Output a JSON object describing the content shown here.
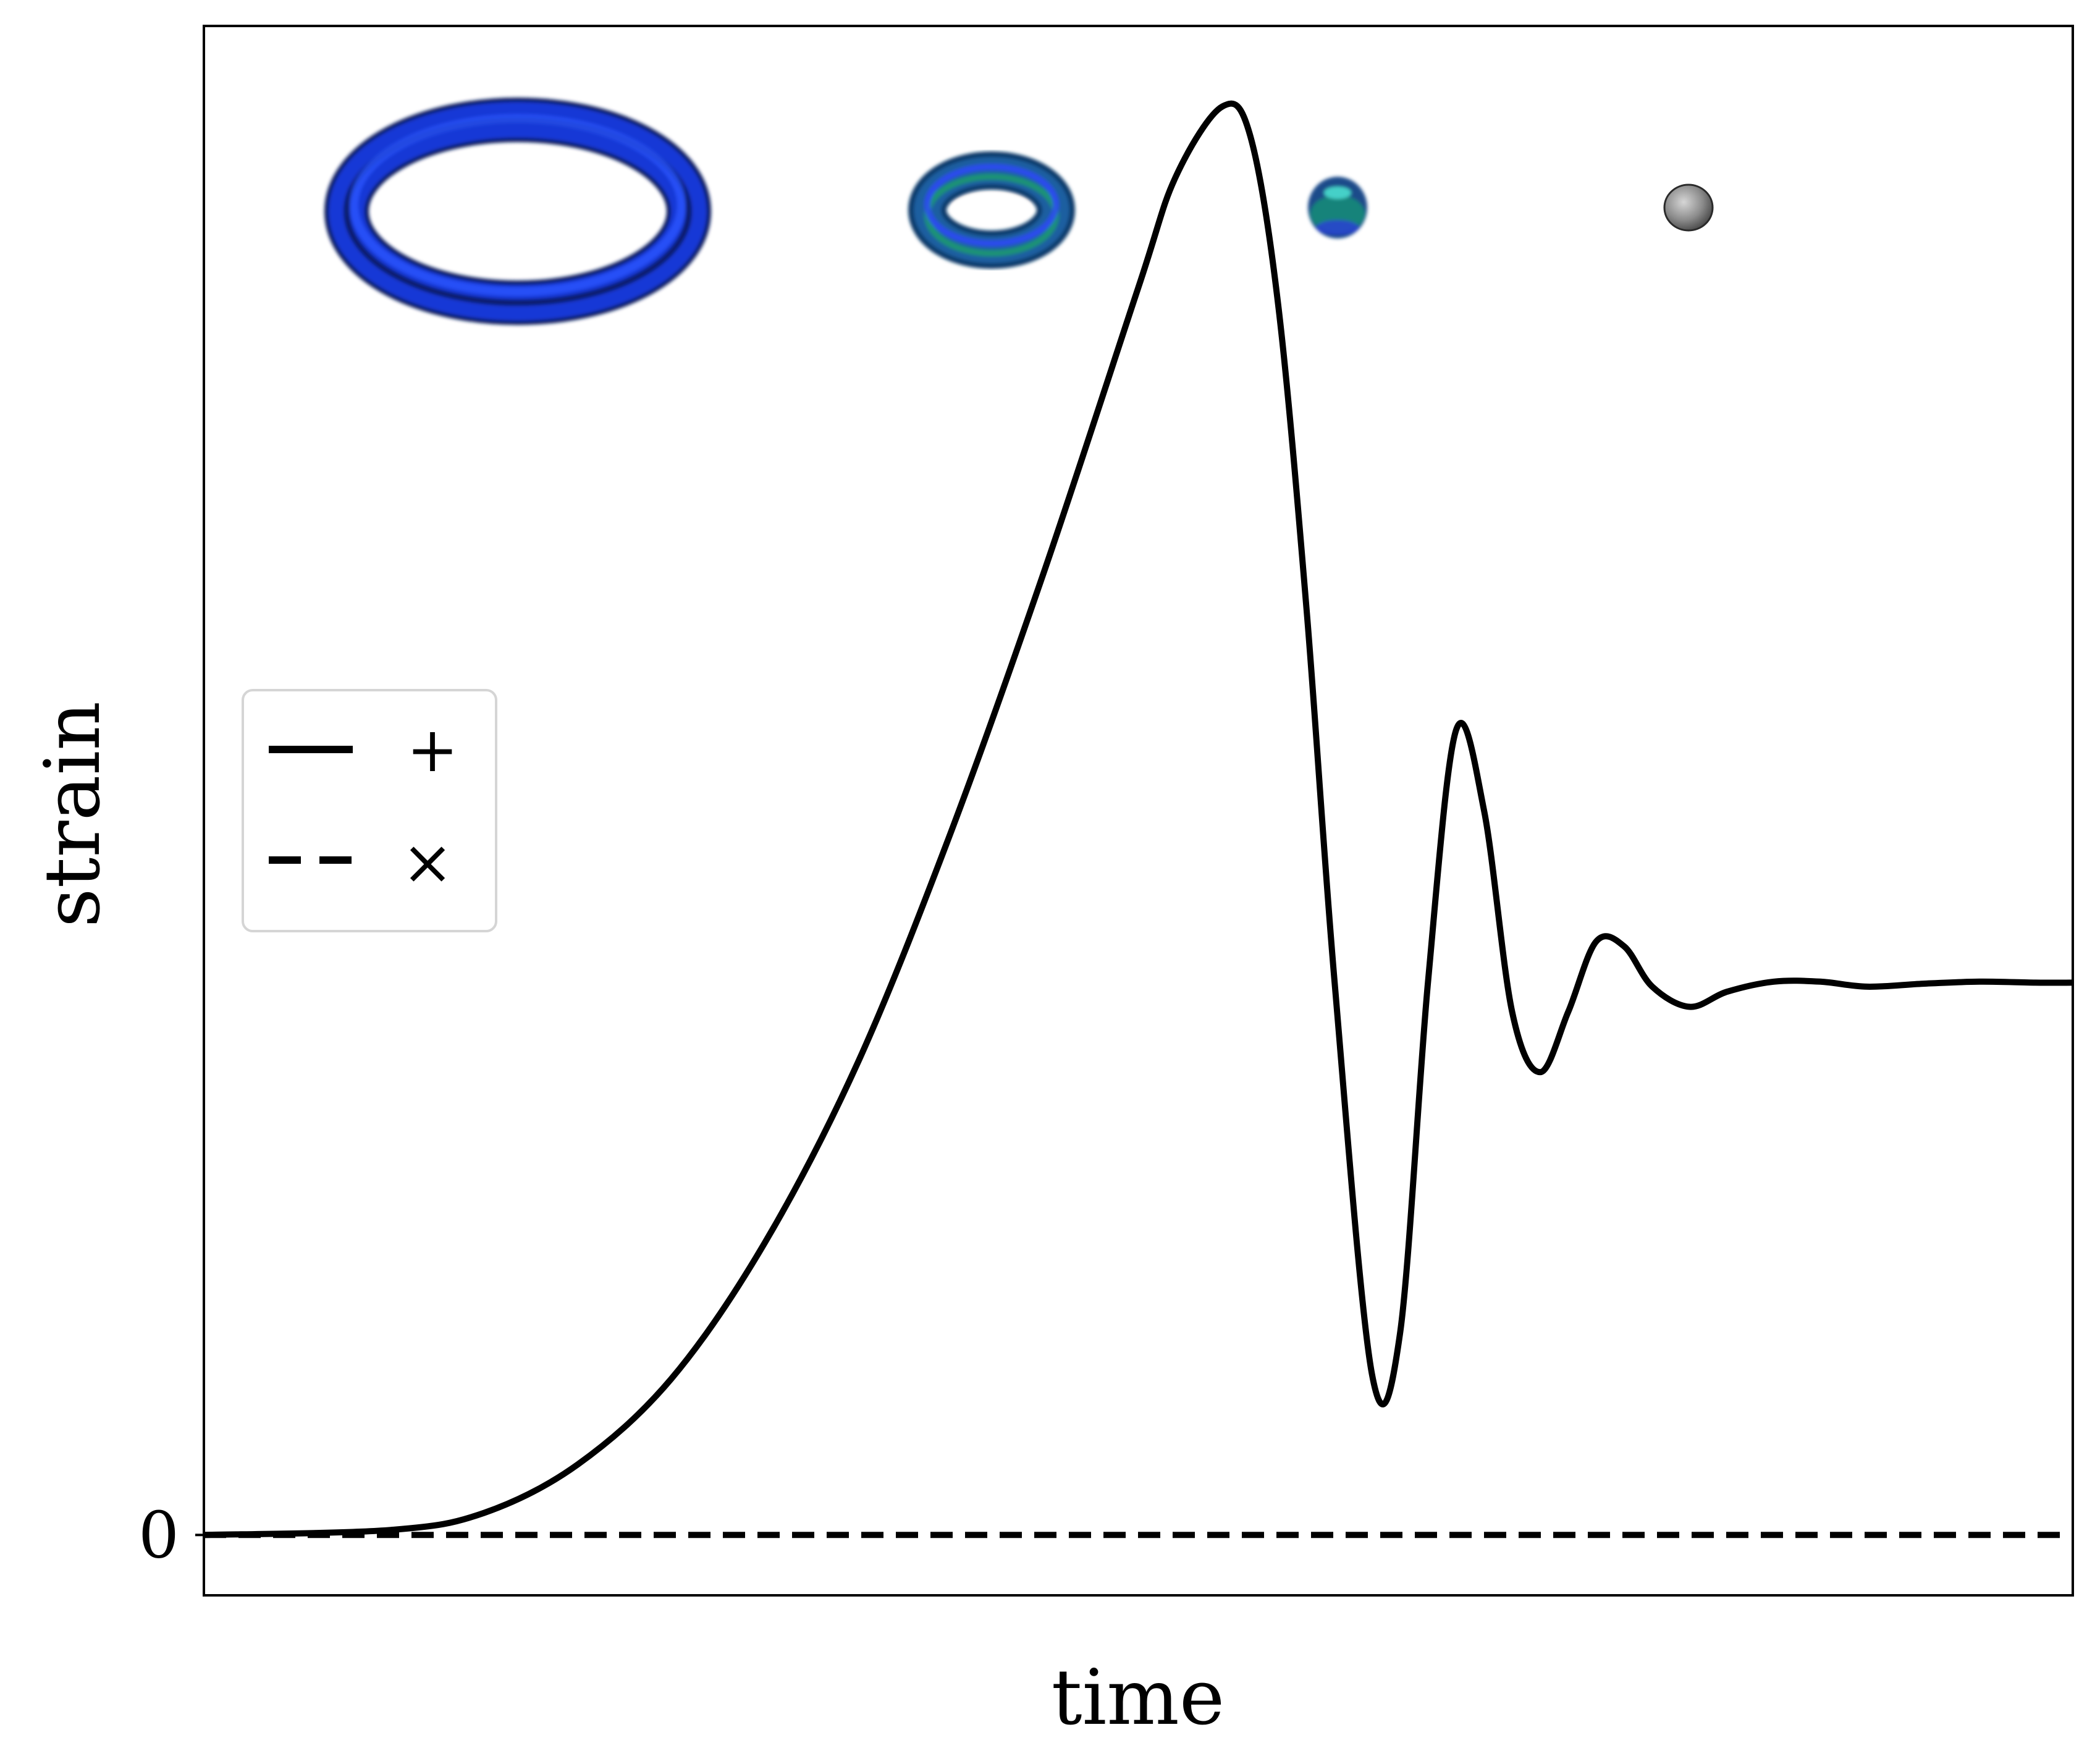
{
  "chart_data": {
    "type": "line",
    "title": "",
    "xlabel": "time",
    "ylabel": "strain",
    "yticks": [
      {
        "value": 0,
        "label": "0"
      }
    ],
    "xlim": [
      0,
      1
    ],
    "ylim": [
      -0.06,
      1.5
    ],
    "grid": false,
    "legend_placement": "center-left",
    "series": [
      {
        "name": "+",
        "style": "solid",
        "x": [
          0,
          0.1,
          0.15,
          0.2,
          0.25,
          0.3,
          0.35,
          0.4,
          0.45,
          0.5,
          0.52,
          0.545,
          0.56,
          0.575,
          0.59,
          0.605,
          0.625,
          0.64,
          0.655,
          0.67,
          0.685,
          0.7,
          0.715,
          0.73,
          0.745,
          0.76,
          0.775,
          0.795,
          0.815,
          0.84,
          0.865,
          0.89,
          0.92,
          0.95,
          0.98,
          1.0
        ],
        "y": [
          0,
          0.005,
          0.022,
          0.07,
          0.155,
          0.29,
          0.47,
          0.7,
          0.96,
          1.24,
          1.35,
          1.42,
          1.39,
          1.22,
          0.92,
          0.55,
          0.16,
          0.2,
          0.55,
          0.8,
          0.72,
          0.52,
          0.46,
          0.52,
          0.59,
          0.585,
          0.545,
          0.525,
          0.54,
          0.55,
          0.55,
          0.545,
          0.548,
          0.55,
          0.549,
          0.549
        ]
      },
      {
        "name": "×",
        "style": "dashed",
        "x": [
          0,
          1
        ],
        "y": [
          0,
          0
        ]
      }
    ],
    "insets": [
      {
        "name": "torus-large-icon"
      },
      {
        "name": "torus-medium-icon"
      },
      {
        "name": "torus-small-icon"
      },
      {
        "name": "sphere-icon"
      }
    ]
  }
}
